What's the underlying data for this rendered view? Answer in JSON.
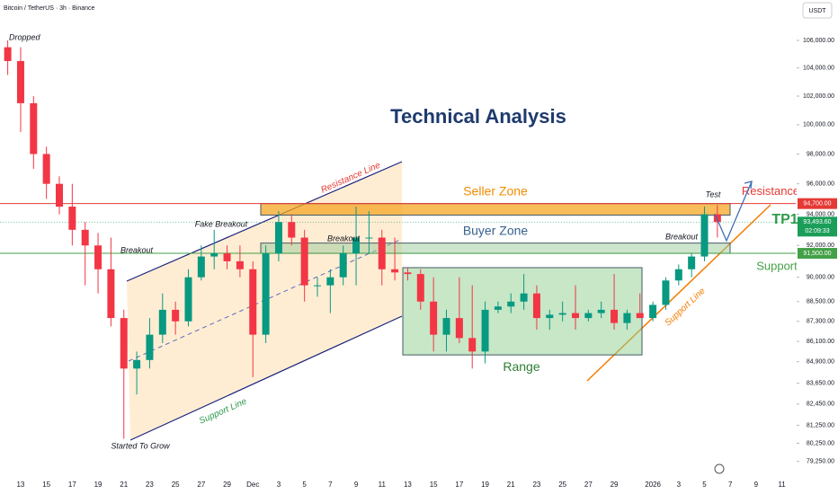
{
  "header": {
    "symbol": "Bitcoin / TetherUS · 3h · Binance",
    "currency": "USDT"
  },
  "chart_data": {
    "type": "candlestick",
    "title": "Technical Analysis",
    "log_scale": true,
    "ylim": [
      78550,
      109000
    ],
    "yticks": [
      {
        "value": 106000,
        "label": "106,000.00"
      },
      {
        "value": 104000,
        "label": "104,000.00"
      },
      {
        "value": 102000,
        "label": "102,000.00"
      },
      {
        "value": 100000,
        "label": "100,000.00"
      },
      {
        "value": 98000,
        "label": "98,000.00"
      },
      {
        "value": 96000,
        "label": "96,000.00"
      },
      {
        "value": 94000,
        "label": "94,000.00"
      },
      {
        "value": 92000,
        "label": "92,000.00"
      },
      {
        "value": 90000,
        "label": "90,000.00"
      },
      {
        "value": 88500,
        "label": "88,500.00"
      },
      {
        "value": 87300,
        "label": "87,300.00"
      },
      {
        "value": 86100,
        "label": "86,100.00"
      },
      {
        "value": 84900,
        "label": "84,900.00"
      },
      {
        "value": 83650,
        "label": "83,650.00"
      },
      {
        "value": 82450,
        "label": "82,450.00"
      },
      {
        "value": 81250,
        "label": "81,250.00"
      },
      {
        "value": 80250,
        "label": "80,250.00"
      },
      {
        "value": 79250,
        "label": "79,250.00"
      }
    ],
    "xticks": [
      "13",
      "15",
      "17",
      "19",
      "21",
      "23",
      "25",
      "27",
      "29",
      "Dec",
      "3",
      "5",
      "7",
      "9",
      "11",
      "13",
      "15",
      "17",
      "19",
      "21",
      "23",
      "25",
      "27",
      "29",
      "2026",
      "3",
      "5",
      "7",
      "9",
      "11"
    ],
    "up_color": "#089981",
    "down_color": "#f23645",
    "candles": [
      [
        105500,
        106000,
        103500,
        104500
      ],
      [
        104500,
        105500,
        99500,
        101500
      ],
      [
        101500,
        102000,
        97000,
        98000
      ],
      [
        98000,
        98500,
        95000,
        96000
      ],
      [
        96000,
        96500,
        94000,
        94500
      ],
      [
        94500,
        96000,
        92000,
        93000
      ],
      [
        93000,
        93500,
        89500,
        92000
      ],
      [
        92000,
        92800,
        89000,
        90500
      ],
      [
        90500,
        92500,
        87000,
        87500
      ],
      [
        87500,
        88000,
        80500,
        84500
      ],
      [
        84500,
        85500,
        83000,
        85000
      ],
      [
        85000,
        87500,
        84500,
        86500
      ],
      [
        86500,
        89000,
        86000,
        88000
      ],
      [
        88000,
        88500,
        86500,
        87300
      ],
      [
        87300,
        90500,
        87000,
        90000
      ],
      [
        90000,
        92000,
        89800,
        91300
      ],
      [
        91300,
        93000,
        90500,
        91500
      ],
      [
        91500,
        92000,
        90500,
        91000
      ],
      [
        91000,
        92000,
        90000,
        90500
      ],
      [
        90500,
        91000,
        84000,
        86500
      ],
      [
        86500,
        92000,
        86000,
        91500
      ],
      [
        91500,
        94200,
        91000,
        93500
      ],
      [
        93500,
        94000,
        92000,
        92500
      ],
      [
        92500,
        93000,
        88500,
        89500
      ],
      [
        89500,
        90000,
        88800,
        89500
      ],
      [
        89500,
        90500,
        87800,
        90000
      ],
      [
        90000,
        92000,
        89500,
        91500
      ],
      [
        91500,
        94500,
        89500,
        92500
      ],
      [
        92500,
        94200,
        91500,
        92500
      ],
      [
        92500,
        93000,
        89500,
        90500
      ],
      [
        90500,
        92500,
        89800,
        90300
      ],
      [
        90300,
        90600,
        89800,
        90200
      ],
      [
        90200,
        90500,
        88000,
        88500
      ],
      [
        88500,
        90000,
        85500,
        86500
      ],
      [
        86500,
        88000,
        85500,
        87500
      ],
      [
        87500,
        90000,
        86000,
        86300
      ],
      [
        86300,
        89500,
        84500,
        85500
      ],
      [
        85500,
        88500,
        84800,
        88000
      ],
      [
        88000,
        88500,
        87800,
        88200
      ],
      [
        88200,
        89000,
        87800,
        88500
      ],
      [
        88500,
        90200,
        88000,
        89000
      ],
      [
        89000,
        89500,
        86800,
        87500
      ],
      [
        87500,
        88000,
        86800,
        87700
      ],
      [
        87700,
        88500,
        87300,
        87800
      ],
      [
        87800,
        89500,
        86800,
        87500
      ],
      [
        87500,
        88000,
        87300,
        87800
      ],
      [
        87800,
        88500,
        87500,
        88000
      ],
      [
        88000,
        90200,
        86800,
        87200
      ],
      [
        87200,
        88000,
        86800,
        87800
      ],
      [
        87800,
        89000,
        87500,
        87500
      ],
      [
        87500,
        88500,
        87300,
        88300
      ],
      [
        88300,
        90000,
        88000,
        89800
      ],
      [
        89800,
        90800,
        89500,
        90500
      ],
      [
        90500,
        91500,
        90000,
        91300
      ],
      [
        91300,
        94500,
        91000,
        94000
      ],
      [
        94000,
        94600,
        92500,
        93500
      ]
    ],
    "levels": [
      {
        "name": "Resistance",
        "value": 94700,
        "label": "94,700.00",
        "color": "#e53935"
      },
      {
        "name": "Support",
        "value": 91500,
        "label": "91,500.00",
        "color": "#43a047"
      }
    ],
    "last_price": {
      "value": 93493.6,
      "label": "93,493.60",
      "countdown": "02:09:33",
      "color": "#1b9e5a"
    },
    "zones": [
      {
        "name": "Seller Zone",
        "top": 94700,
        "bottom": 93950,
        "color": "#f5a623",
        "text_color": "#f08c00"
      },
      {
        "name": "Buyer Zone",
        "top": 92150,
        "bottom": 91500,
        "color": "#9ccc9c",
        "text_color": "#37618e"
      },
      {
        "name": "Range",
        "top": 90600,
        "bottom": 85300,
        "color": "#8fcf8f",
        "text_color": "#2e7d32"
      }
    ],
    "annotations": [
      "Dropped",
      "Resistance Line",
      "Support Line",
      "Fake Breakout",
      "Breakout",
      "Breakout",
      "Breakout",
      "Started To Grow",
      "Test",
      "Support Line",
      "TP1"
    ]
  }
}
